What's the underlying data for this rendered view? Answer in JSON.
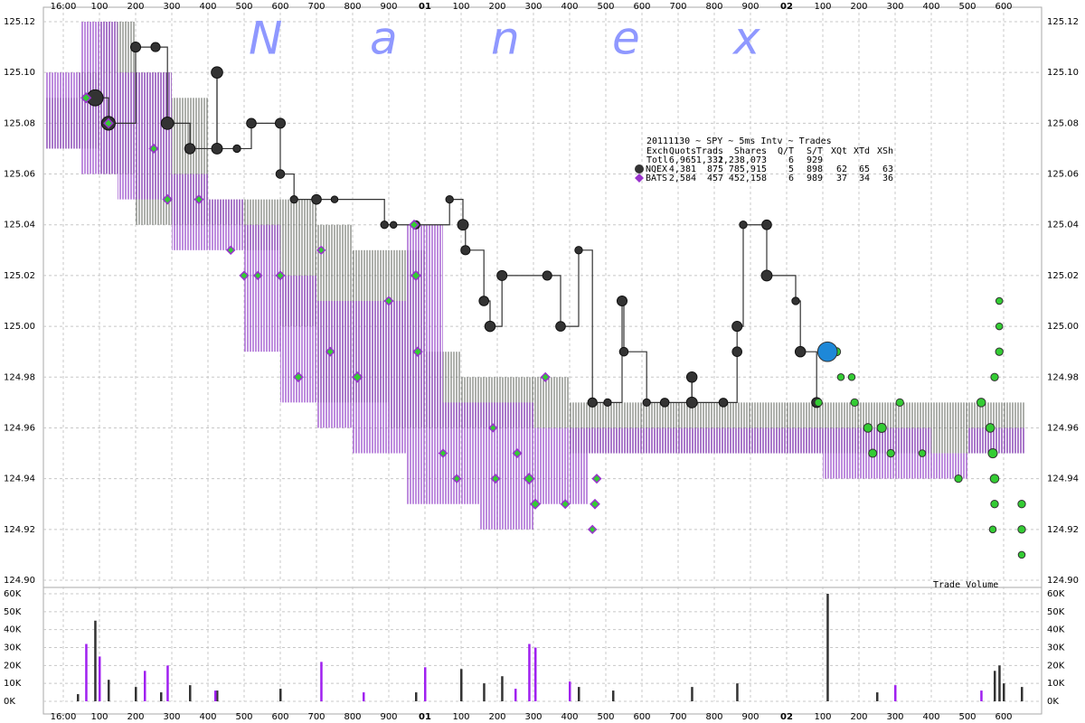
{
  "chart_data": [
    {
      "type": "scatter",
      "watermark": [
        "N",
        "a",
        "n",
        "e",
        "x"
      ],
      "legend_table": {
        "title": "20111130 ~ SPY ~ 5ms Intv ~ Trades",
        "header": [
          "Exch",
          "Quots",
          "Trads",
          "Shares",
          "Q/T",
          "S/T",
          "XQt",
          "XTd",
          "XSh"
        ],
        "total": {
          "label": "Totl",
          "stats": [
            "6,965",
            "1,332",
            "1,238,073",
            "6",
            "929"
          ]
        }
      },
      "xlim": [
        -55,
        2705
      ],
      "xticks": [
        {
          "value": 0,
          "label": "16:00"
        },
        100,
        200,
        300,
        400,
        500,
        600,
        700,
        800,
        900,
        {
          "value": 1000,
          "label": "01"
        },
        {
          "value": 1100,
          "label": "100"
        },
        {
          "value": 1200,
          "label": "200"
        },
        {
          "value": 1300,
          "label": "300"
        },
        {
          "value": 1400,
          "label": "400"
        },
        {
          "value": 1500,
          "label": "500"
        },
        {
          "value": 1600,
          "label": "600"
        },
        {
          "value": 1700,
          "label": "700"
        },
        {
          "value": 1800,
          "label": "800"
        },
        {
          "value": 1900,
          "label": "900"
        },
        {
          "value": 2000,
          "label": "02"
        },
        {
          "value": 2100,
          "label": "100"
        },
        {
          "value": 2200,
          "label": "200"
        },
        {
          "value": 2300,
          "label": "300"
        },
        {
          "value": 2400,
          "label": "400"
        },
        {
          "value": 2500,
          "label": "500"
        },
        {
          "value": 2600,
          "label": "600"
        }
      ],
      "ylim": [
        124.9,
        125.12
      ],
      "yticks": [
        {
          "value": 124.9,
          "label": "124.90"
        },
        {
          "value": 124.92,
          "label": "124.92"
        },
        {
          "value": 124.94,
          "label": "124.94"
        },
        {
          "value": 124.96,
          "label": "124.96"
        },
        {
          "value": 124.98,
          "label": "124.98"
        },
        {
          "value": 125.0,
          "label": "125.00"
        },
        {
          "value": 125.02,
          "label": "125.02"
        },
        {
          "value": 125.04,
          "label": "125.04"
        },
        {
          "value": 125.06,
          "label": "125.06"
        },
        {
          "value": 125.08,
          "label": "125.08"
        },
        {
          "value": 125.1,
          "label": "125.10"
        },
        {
          "value": 125.12,
          "label": "125.12"
        }
      ],
      "grid": true,
      "quote_series": [
        {
          "color": "#4a5048",
          "x": [
            -50,
            40,
            100,
            200,
            300,
            400,
            500,
            600,
            700,
            800,
            900,
            1000,
            1100,
            1200,
            1400,
            1600,
            2000,
            2300
          ],
          "low": [
            125.07,
            125.07,
            125.06,
            125.04,
            125.04,
            125.04,
            125.03,
            125.0,
            124.97,
            124.97,
            124.96,
            124.96,
            124.96,
            124.96,
            124.95,
            124.95,
            124.95,
            124.95
          ],
          "high": [
            125.09,
            125.1,
            125.12,
            125.1,
            125.09,
            125.05,
            125.05,
            125.05,
            125.04,
            125.03,
            125.03,
            124.99,
            124.98,
            124.98,
            124.97,
            124.97,
            124.97,
            124.97
          ],
          "x_end": 2658
        },
        {
          "color": "#9340c8",
          "x": [
            -50,
            50,
            150,
            300,
            400,
            500,
            600,
            700,
            800,
            950,
            1050,
            1150,
            1300,
            1450,
            2100,
            2400,
            2500
          ],
          "low": [
            125.07,
            125.06,
            125.05,
            125.03,
            125.03,
            124.99,
            124.97,
            124.96,
            124.95,
            124.93,
            124.93,
            124.92,
            124.93,
            124.95,
            124.94,
            124.94,
            124.95
          ],
          "high": [
            125.1,
            125.12,
            125.1,
            125.06,
            125.05,
            125.04,
            125.02,
            125.01,
            125.01,
            125.04,
            124.97,
            124.97,
            124.96,
            124.96,
            124.96,
            124.95,
            124.96
          ],
          "x_end": 2658
        }
      ],
      "series": [
        {
          "name": "NQEX",
          "color": "#333333",
          "marker": "circle",
          "step_line": true,
          "stats": [
            "4,381",
            "875",
            "785,915",
            "5",
            "898",
            "62",
            "65",
            "63"
          ],
          "x": [
            88,
            125,
            200,
            255,
            288,
            350,
            425,
            425,
            480,
            520,
            600,
            600,
            638,
            700,
            750,
            888,
            913,
            975,
            1068,
            1105,
            1112,
            1163,
            1180,
            1213,
            1338,
            1375,
            1425,
            1463,
            1505,
            1545,
            1550,
            1613,
            1663,
            1738,
            1738,
            1825,
            1863,
            1863,
            1880,
            1945,
            1945,
            2025,
            2038,
            2083
          ],
          "values": [
            125.09,
            125.08,
            125.11,
            125.11,
            125.08,
            125.07,
            125.1,
            125.07,
            125.07,
            125.08,
            125.08,
            125.06,
            125.05,
            125.05,
            125.05,
            125.04,
            125.04,
            125.04,
            125.05,
            125.04,
            125.03,
            125.01,
            125.0,
            125.02,
            125.02,
            125.0,
            125.03,
            124.97,
            124.97,
            125.01,
            124.99,
            124.97,
            124.97,
            124.98,
            124.97,
            124.97,
            124.99,
            125.0,
            125.04,
            125.04,
            125.02,
            125.01,
            124.99,
            124.97
          ],
          "sizes": [
            3000,
            2000,
            800,
            600,
            1500,
            900,
            1200,
            1000,
            300,
            700,
            800,
            500,
            300,
            700,
            200,
            300,
            200,
            400,
            300,
            1000,
            600,
            700,
            900,
            800,
            600,
            700,
            300,
            600,
            300,
            800,
            500,
            300,
            500,
            900,
            1000,
            500,
            700,
            800,
            300,
            700,
            1000,
            300,
            900,
            800
          ]
        },
        {
          "name": "BATS",
          "color": "#9933cc",
          "fill": "#33cc33",
          "marker": "diamond",
          "stats": [
            "2,584",
            "457",
            "452,158",
            "6",
            "989",
            "37",
            "34",
            "36"
          ],
          "x": [
            63,
            125,
            250,
            288,
            375,
            463,
            500,
            538,
            600,
            650,
            713,
            738,
            813,
            900,
            970,
            975,
            980,
            1050,
            1088,
            1188,
            1195,
            1255,
            1288,
            1305,
            1333,
            1388,
            1463,
            1470,
            1475
          ],
          "values": [
            125.09,
            125.08,
            125.07,
            125.05,
            125.05,
            125.03,
            125.02,
            125.02,
            125.02,
            124.98,
            125.03,
            124.99,
            124.98,
            125.01,
            125.04,
            125.02,
            124.99,
            124.95,
            124.94,
            124.96,
            124.94,
            124.95,
            124.94,
            124.93,
            124.98,
            124.93,
            124.92,
            124.93,
            124.94
          ],
          "sizes": [
            600,
            500,
            400,
            500,
            400,
            300,
            400,
            300,
            400,
            500,
            300,
            400,
            700,
            400,
            500,
            600,
            500,
            300,
            300,
            300,
            400,
            400,
            800,
            600,
            400,
            400,
            300,
            500,
            400
          ]
        },
        {
          "color": "#33cc33",
          "marker": "circle",
          "x": [
            2088,
            2138,
            2150,
            2180,
            2188,
            2225,
            2238,
            2263,
            2288,
            2313,
            2375,
            2475,
            2538,
            2563,
            2570,
            2575,
            2588,
            2588,
            2575,
            2570,
            2650,
            2650,
            2650,
            2588,
            2575
          ],
          "values": [
            124.97,
            124.99,
            124.98,
            124.98,
            124.97,
            124.96,
            124.95,
            124.96,
            124.95,
            124.97,
            124.95,
            124.94,
            124.97,
            124.96,
            124.95,
            124.94,
            125.0,
            125.01,
            124.93,
            124.92,
            124.93,
            124.92,
            124.91,
            124.99,
            124.98
          ],
          "sizes": [
            300,
            400,
            200,
            200,
            300,
            500,
            400,
            600,
            300,
            300,
            200,
            300,
            500,
            500,
            600,
            500,
            200,
            200,
            300,
            200,
            300,
            300,
            200,
            300,
            300
          ]
        },
        {
          "color": "#1e88d8",
          "marker": "circle",
          "x": [
            2113
          ],
          "values": [
            124.99
          ],
          "sizes": [
            5000
          ]
        }
      ]
    },
    {
      "type": "bar",
      "title": "Trade Volume",
      "xlim": [
        -55,
        2705
      ],
      "xticks": [
        {
          "value": 0,
          "label": "16:00"
        },
        100,
        200,
        300,
        400,
        500,
        600,
        700,
        800,
        900,
        {
          "value": 1000,
          "label": "01"
        },
        {
          "value": 1100,
          "label": "100"
        },
        {
          "value": 1200,
          "label": "200"
        },
        {
          "value": 1300,
          "label": "300"
        },
        {
          "value": 1400,
          "label": "400"
        },
        {
          "value": 1500,
          "label": "500"
        },
        {
          "value": 1600,
          "label": "600"
        },
        {
          "value": 1700,
          "label": "700"
        },
        {
          "value": 1800,
          "label": "800"
        },
        {
          "value": 1900,
          "label": "900"
        },
        {
          "value": 2000,
          "label": "02"
        },
        {
          "value": 2100,
          "label": "100"
        },
        {
          "value": 2200,
          "label": "200"
        },
        {
          "value": 2300,
          "label": "300"
        },
        {
          "value": 2400,
          "label": "400"
        },
        {
          "value": 2500,
          "label": "500"
        },
        {
          "value": 2600,
          "label": "600"
        }
      ],
      "ylim": [
        0,
        60000
      ],
      "yticks": [
        {
          "value": 0,
          "label": "0K"
        },
        {
          "value": 10000,
          "label": "10K"
        },
        {
          "value": 20000,
          "label": "20K"
        },
        {
          "value": 30000,
          "label": "30K"
        },
        {
          "value": 40000,
          "label": "40K"
        },
        {
          "value": 50000,
          "label": "50K"
        },
        {
          "value": 60000,
          "label": "60K"
        }
      ],
      "grid": true,
      "series": [
        {
          "color": "#333333",
          "x": [
            40,
            88,
            125,
            200,
            270,
            350,
            425,
            600,
            975,
            1100,
            1163,
            1213,
            1425,
            1520,
            1738,
            1863,
            2113,
            2250,
            2575,
            2588,
            2600,
            2650
          ],
          "values": [
            4000,
            45000,
            12000,
            8000,
            5000,
            9000,
            6000,
            7000,
            5000,
            18000,
            10000,
            14000,
            8000,
            6000,
            8000,
            10000,
            60000,
            5000,
            17000,
            20000,
            10000,
            8000
          ]
        },
        {
          "color": "#a020f0",
          "x": [
            63,
            100,
            225,
            288,
            420,
            713,
            830,
            1000,
            1288,
            1305,
            1400,
            1250,
            2300,
            2538
          ],
          "values": [
            32000,
            25000,
            17000,
            20000,
            6000,
            22000,
            5000,
            19000,
            32000,
            30000,
            11000,
            7000,
            9000,
            6000
          ]
        }
      ]
    }
  ]
}
